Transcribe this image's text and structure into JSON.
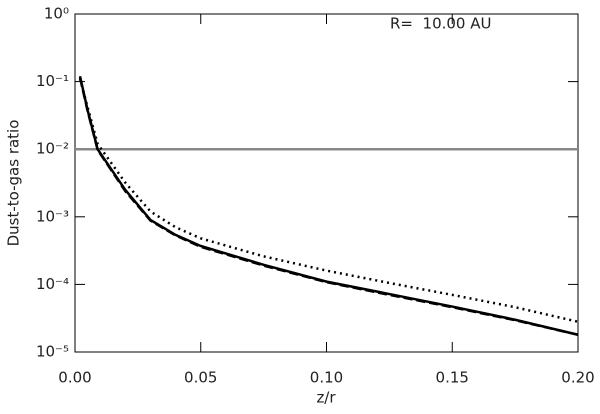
{
  "chart_data": {
    "type": "line",
    "annotation": "R=  10.00 AU",
    "x_label": "z/r",
    "y_label": "Dust-to-gas ratio",
    "log_y": true,
    "x": [
      0.002,
      0.005,
      0.009,
      0.02,
      0.03,
      0.04,
      0.05,
      0.075,
      0.1,
      0.125,
      0.15,
      0.175,
      0.2
    ],
    "series": [
      {
        "style": "solid",
        "color": "#000000",
        "values": [
          0.12,
          0.038,
          0.01,
          0.0025,
          0.0009,
          0.00054,
          0.00037,
          0.000195,
          0.00011,
          7.2e-05,
          4.7e-05,
          3e-05,
          1.8e-05
        ]
      },
      {
        "style": "dashed",
        "color": "#000000",
        "values": [
          0.115,
          0.037,
          0.0098,
          0.0024,
          0.00088,
          0.00053,
          0.00036,
          0.00019,
          0.000108,
          7e-05,
          4.6e-05,
          2.95e-05,
          1.8e-05
        ]
      },
      {
        "style": "dotted",
        "color": "#000000",
        "values": [
          0.11,
          0.042,
          0.012,
          0.0032,
          0.0012,
          0.0007,
          0.00048,
          0.00026,
          0.00016,
          0.000105,
          7e-05,
          4.6e-05,
          2.8e-05
        ]
      }
    ],
    "reference_line": {
      "value": 0.01,
      "color": "#888888"
    },
    "xlim": [
      0,
      0.2
    ],
    "xticks": [
      {
        "value": 0,
        "label": "0.00"
      },
      {
        "value": 0.05,
        "label": "0.05"
      },
      {
        "value": 0.1,
        "label": "0.10"
      },
      {
        "value": 0.15,
        "label": "0.15"
      },
      {
        "value": 0.2,
        "label": "0.20"
      }
    ],
    "ylim": [
      1e-05,
      1
    ],
    "yticks": [
      {
        "value": 1e-05,
        "label": "10⁻⁵"
      },
      {
        "value": 0.0001,
        "label": "10⁻⁴"
      },
      {
        "value": 0.001,
        "label": "10⁻³"
      },
      {
        "value": 0.01,
        "label": "10⁻²"
      },
      {
        "value": 0.1,
        "label": "10⁻¹"
      },
      {
        "value": 1,
        "label": "10⁰"
      }
    ]
  }
}
